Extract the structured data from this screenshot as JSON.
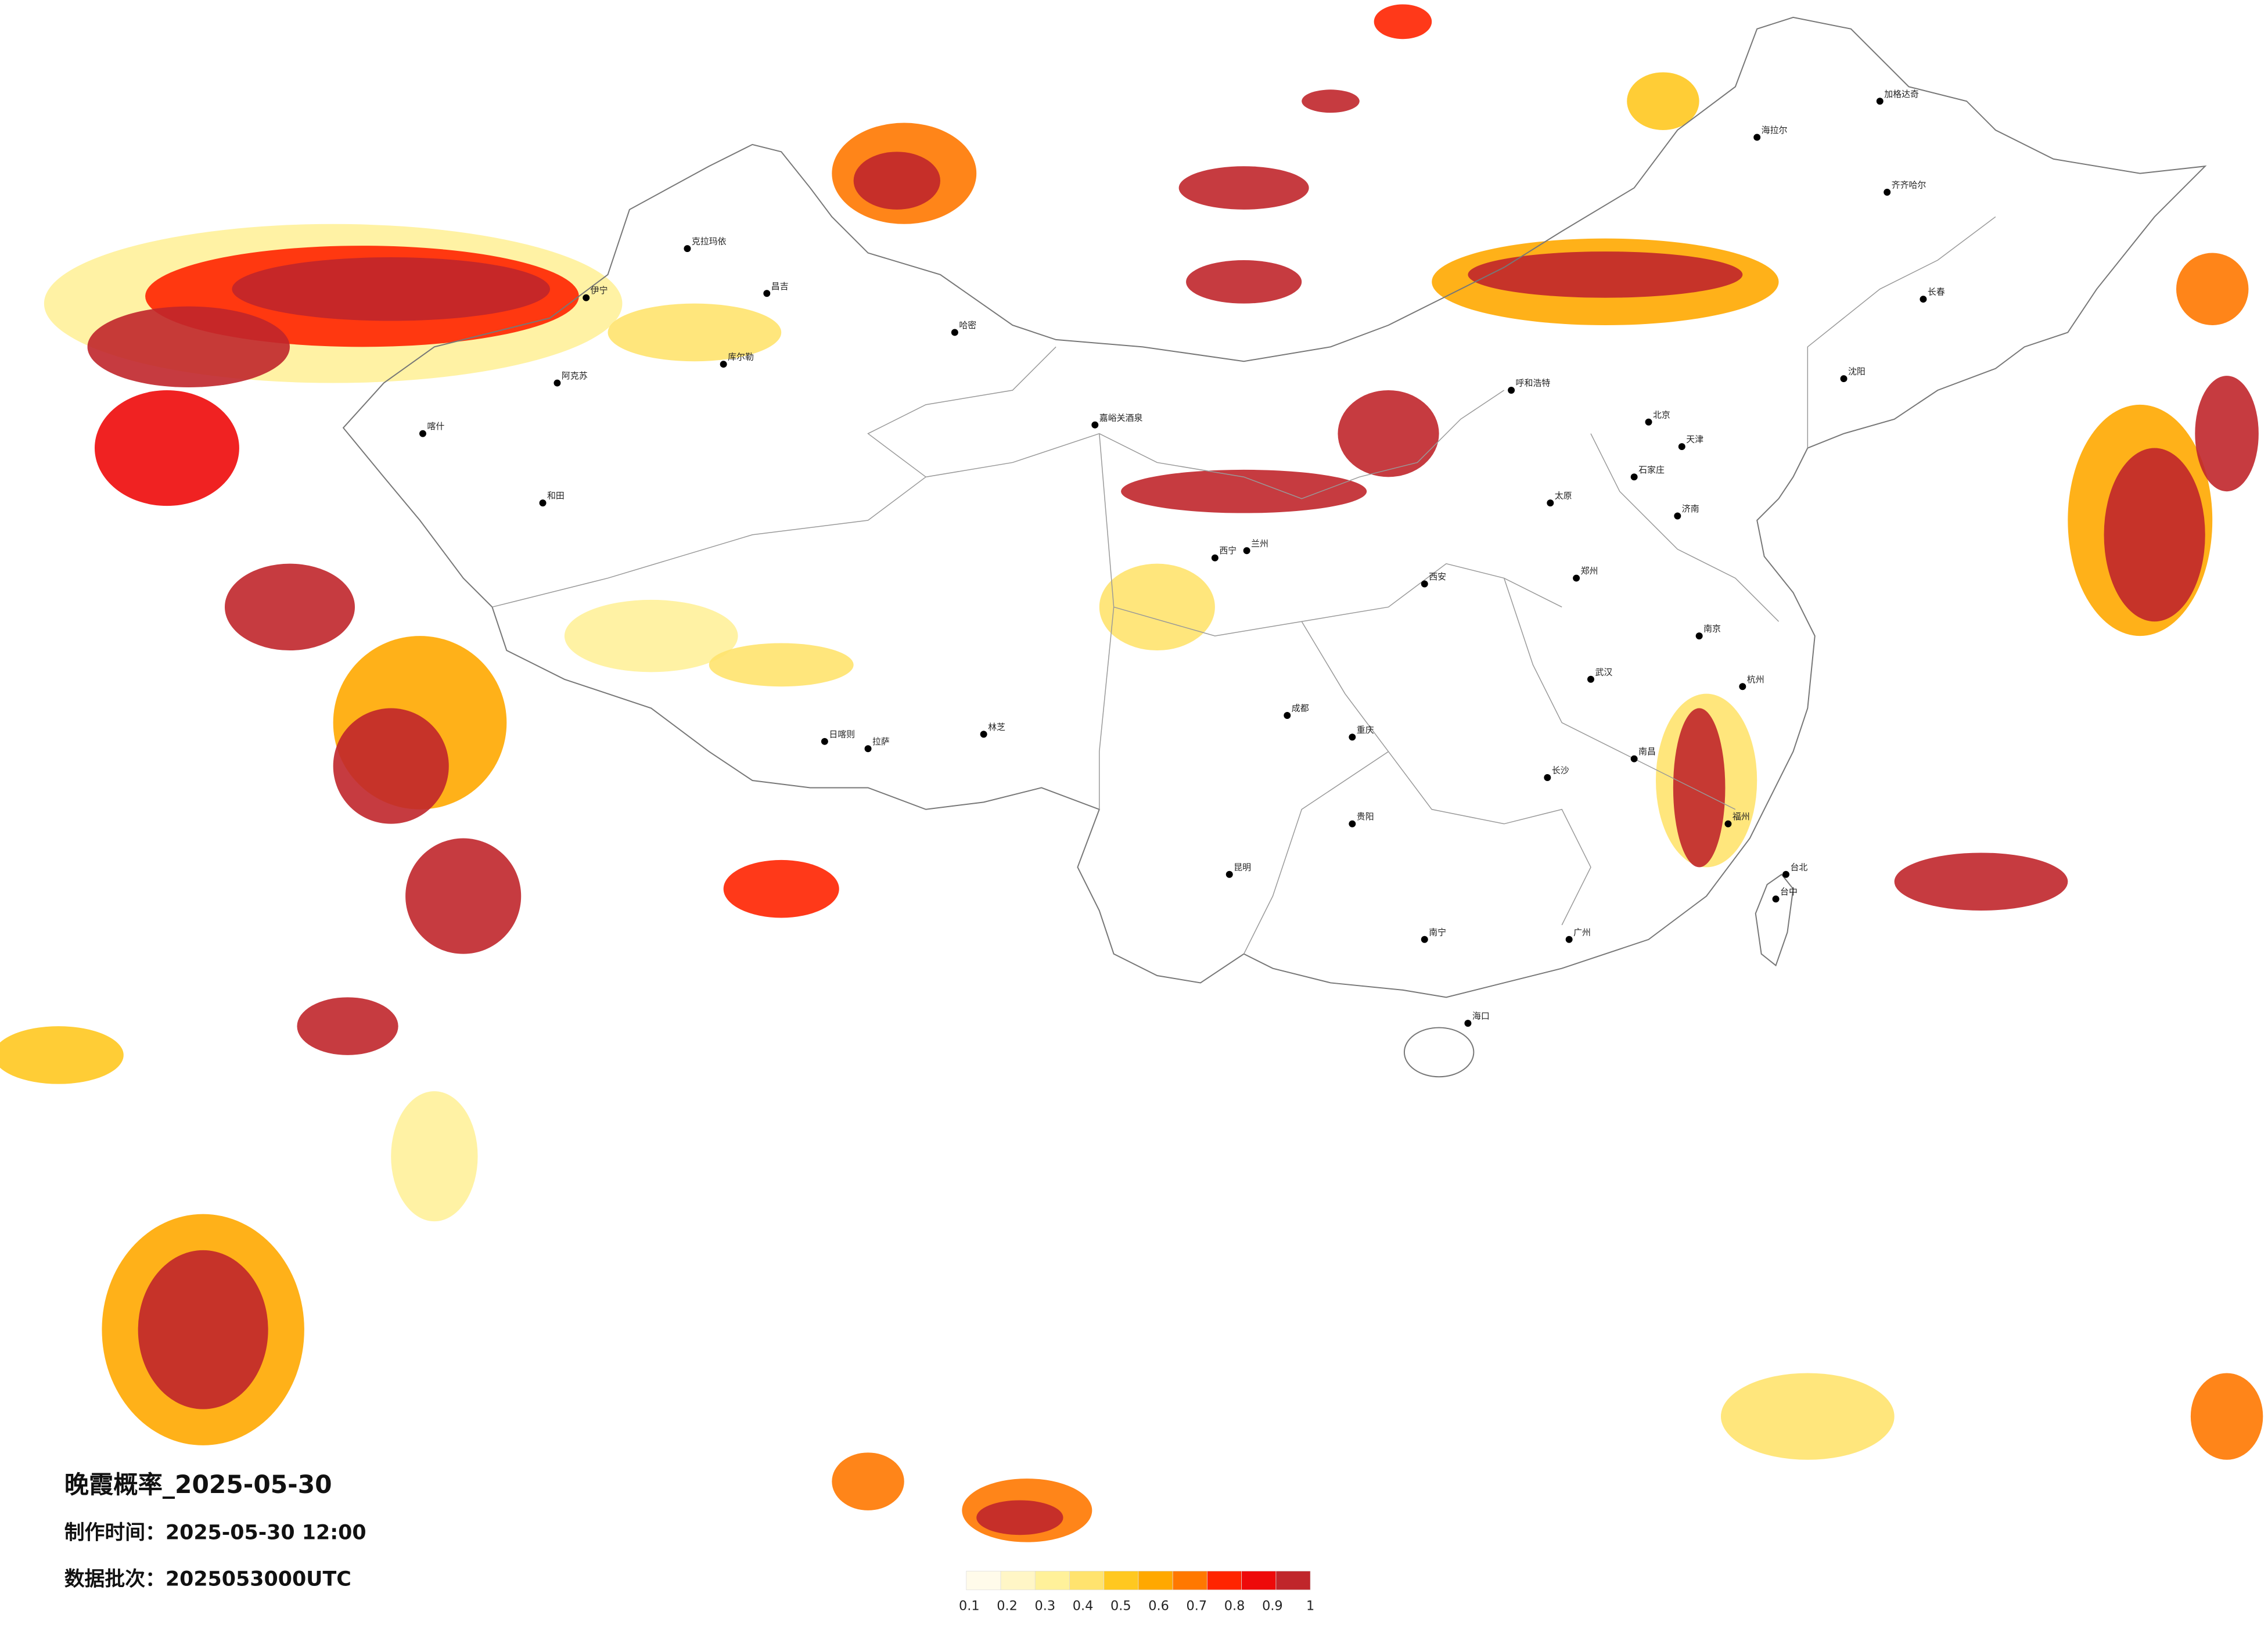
{
  "title": "晚霞概率_2025-05-30",
  "made_time": "制作时间：2025-05-30 12:00",
  "batch": "数据批次：2025053000UTC",
  "colorbar": {
    "ticks": [
      0.1,
      0.2,
      0.3,
      0.4,
      0.5,
      0.6,
      0.7,
      0.8,
      0.9,
      1
    ],
    "colors": [
      "#fffbea",
      "#fff6c6",
      "#fff19a",
      "#ffe36e",
      "#ffc820",
      "#ffa800",
      "#ff7800",
      "#ff2400",
      "#ee0a0a",
      "#c0262b"
    ]
  },
  "cities": [
    "克拉玛依",
    "伊宁",
    "阿克苏",
    "和田",
    "喀什",
    "昌吉",
    "库尔勒",
    "哈密",
    "嘉峪关酒泉",
    "西宁",
    "兰州",
    "海拉尔",
    "加格达奇",
    "齐齐哈尔",
    "长春",
    "沈阳",
    "北京",
    "天津",
    "石家庄",
    "太原",
    "济南",
    "郑州",
    "西安",
    "武汉",
    "长沙",
    "南昌",
    "杭州",
    "南京",
    "福州",
    "广州",
    "南宁",
    "贵阳",
    "昆明",
    "成都",
    "重庆",
    "拉萨",
    "日喀则",
    "林芝",
    "海口",
    "台北",
    "台中",
    "呼和浩特"
  ]
}
